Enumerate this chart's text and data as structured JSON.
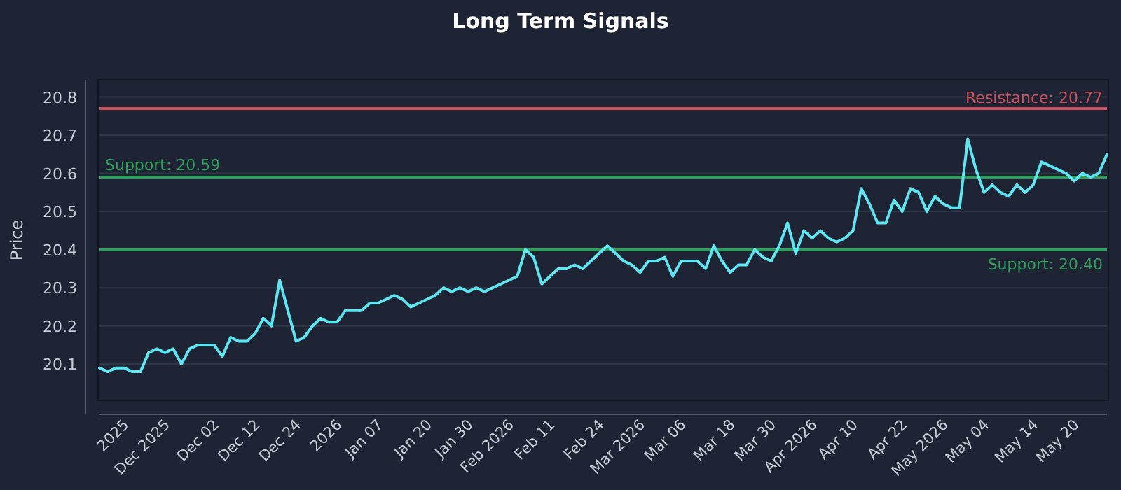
{
  "chart_data": {
    "type": "line",
    "title": "Long Term Signals",
    "ylabel": "Price",
    "categories": [
      null,
      null,
      null,
      "2025",
      null,
      null,
      null,
      null,
      "Dec 2025",
      null,
      null,
      null,
      null,
      null,
      "Dec 02",
      null,
      null,
      null,
      null,
      "Dec 12",
      null,
      null,
      null,
      null,
      "Dec 24",
      null,
      null,
      null,
      null,
      "2026",
      null,
      null,
      null,
      null,
      "Jan 07",
      null,
      null,
      null,
      null,
      null,
      "Jan 20",
      null,
      null,
      null,
      null,
      "Jan 30",
      null,
      null,
      null,
      null,
      "Feb 2026",
      null,
      null,
      null,
      null,
      "Feb 11",
      null,
      null,
      null,
      null,
      null,
      "Feb 24",
      null,
      null,
      null,
      null,
      "Mar 2026",
      null,
      null,
      null,
      null,
      "Mar 06",
      null,
      null,
      null,
      null,
      null,
      "Mar 18",
      null,
      null,
      null,
      null,
      "Mar 30",
      null,
      null,
      null,
      null,
      "Apr 2026",
      null,
      null,
      null,
      null,
      "Apr 10",
      null,
      null,
      null,
      null,
      null,
      "Apr 22",
      null,
      null,
      null,
      null,
      "May 2026",
      null,
      null,
      null,
      null,
      "May 04",
      null,
      null,
      null,
      null,
      null,
      "May 14",
      null,
      null,
      null,
      null,
      "May 20",
      null,
      null,
      null,
      null
    ],
    "series": [
      {
        "color": "#5ce6f2",
        "values": [
          20.09,
          20.08,
          20.09,
          20.09,
          20.08,
          20.08,
          20.13,
          20.14,
          20.13,
          20.14,
          20.1,
          20.14,
          20.15,
          20.15,
          20.15,
          20.12,
          20.17,
          20.16,
          20.16,
          20.18,
          20.22,
          20.2,
          20.32,
          20.24,
          20.16,
          20.17,
          20.2,
          20.22,
          20.21,
          20.21,
          20.24,
          20.24,
          20.24,
          20.26,
          20.26,
          20.27,
          20.28,
          20.27,
          20.25,
          20.26,
          20.27,
          20.28,
          20.3,
          20.29,
          20.3,
          20.29,
          20.3,
          20.29,
          20.3,
          20.31,
          20.32,
          20.33,
          20.4,
          20.38,
          20.31,
          20.33,
          20.35,
          20.35,
          20.36,
          20.35,
          20.37,
          20.39,
          20.41,
          20.39,
          20.37,
          20.36,
          20.34,
          20.37,
          20.37,
          20.38,
          20.33,
          20.37,
          20.37,
          20.37,
          20.35,
          20.41,
          20.37,
          20.34,
          20.36,
          20.36,
          20.4,
          20.38,
          20.37,
          20.41,
          20.47,
          20.39,
          20.45,
          20.43,
          20.45,
          20.43,
          20.42,
          20.43,
          20.45,
          20.56,
          20.52,
          20.47,
          20.47,
          20.53,
          20.5,
          20.56,
          20.55,
          20.5,
          20.54,
          20.52,
          20.51,
          20.51,
          20.69,
          20.61,
          20.55,
          20.57,
          20.55,
          20.54,
          20.57,
          20.55,
          20.57,
          20.63,
          20.62,
          20.61,
          20.6,
          20.58,
          20.6,
          20.59,
          20.6,
          20.65
        ]
      }
    ],
    "ylim": [
      20.005,
      20.845
    ],
    "yticks": [
      20.1,
      20.2,
      20.3,
      20.4,
      20.5,
      20.6,
      20.7,
      20.8
    ],
    "grid": "y",
    "ref_lines": [
      {
        "axis": "y",
        "value": 20.77,
        "label": "Resistance: 20.77",
        "color": "#c9505c"
      },
      {
        "axis": "y",
        "value": 20.59,
        "label": "Support: 20.59",
        "color": "#2fa05c"
      },
      {
        "axis": "y",
        "value": 20.4,
        "label": "Support: 20.40",
        "color": "#2fa05c"
      }
    ]
  }
}
